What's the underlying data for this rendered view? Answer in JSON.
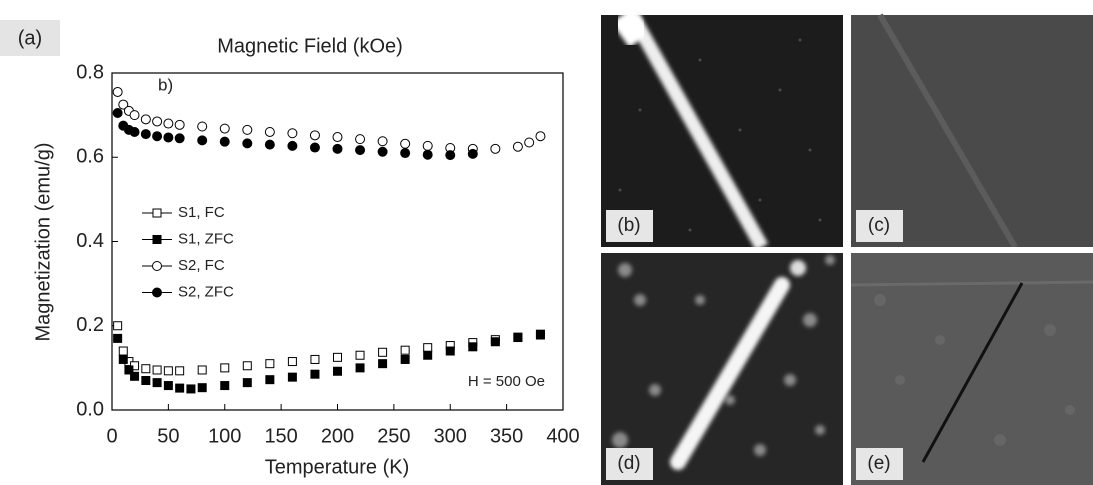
{
  "chart_data": {
    "type": "scatter",
    "panel_label": "(a)",
    "title": "Magnetic Field (kOe)",
    "annotation": "b)",
    "note": "H = 500 Oe",
    "x_label": "Temperature (K)",
    "y_label": "Magnetization (emu/g)",
    "xlim": [
      0,
      400
    ],
    "ylim": [
      0,
      0.8
    ],
    "xticks": [
      0,
      50,
      100,
      150,
      200,
      250,
      300,
      350,
      400
    ],
    "yticks": [
      {
        "value": 0,
        "label": "0.0"
      },
      0.2,
      0.4,
      0.6,
      {
        "value": 0.8,
        "label": "0.8"
      }
    ],
    "series": [
      {
        "name": "S1, FC",
        "marker": "square",
        "color": "#000",
        "fill": "#fff",
        "x": [
          5,
          10,
          15,
          20,
          30,
          40,
          50,
          60,
          80,
          100,
          120,
          140,
          160,
          180,
          200,
          220,
          240,
          260,
          280,
          300,
          320,
          340,
          360,
          380
        ],
        "values": [
          0.2,
          0.14,
          0.115,
          0.105,
          0.098,
          0.095,
          0.093,
          0.093,
          0.095,
          0.1,
          0.105,
          0.11,
          0.115,
          0.12,
          0.125,
          0.13,
          0.137,
          0.142,
          0.148,
          0.153,
          0.16,
          0.167,
          0.173,
          0.18
        ]
      },
      {
        "name": "S1, ZFC",
        "marker": "square",
        "color": "#000",
        "fill": "#000",
        "x": [
          5,
          10,
          15,
          20,
          30,
          40,
          50,
          60,
          70,
          80,
          100,
          120,
          140,
          160,
          180,
          200,
          220,
          240,
          260,
          280,
          300,
          320,
          340,
          360,
          380
        ],
        "values": [
          0.17,
          0.12,
          0.095,
          0.08,
          0.07,
          0.065,
          0.058,
          0.052,
          0.05,
          0.053,
          0.058,
          0.065,
          0.072,
          0.078,
          0.085,
          0.092,
          0.1,
          0.11,
          0.12,
          0.13,
          0.14,
          0.15,
          0.162,
          0.172,
          0.178
        ]
      },
      {
        "name": "S2, FC",
        "marker": "circle",
        "color": "#000",
        "fill": "#fff",
        "x": [
          5,
          10,
          15,
          20,
          30,
          40,
          50,
          60,
          80,
          100,
          120,
          140,
          160,
          180,
          200,
          220,
          240,
          260,
          280,
          300,
          320,
          340,
          360,
          370,
          380
        ],
        "values": [
          0.755,
          0.725,
          0.71,
          0.7,
          0.69,
          0.685,
          0.68,
          0.677,
          0.673,
          0.668,
          0.665,
          0.66,
          0.657,
          0.652,
          0.648,
          0.643,
          0.638,
          0.632,
          0.627,
          0.622,
          0.62,
          0.62,
          0.625,
          0.635,
          0.65
        ]
      },
      {
        "name": "S2, ZFC",
        "marker": "circle",
        "color": "#000",
        "fill": "#000",
        "x": [
          5,
          10,
          15,
          20,
          30,
          40,
          50,
          60,
          80,
          100,
          120,
          140,
          160,
          180,
          200,
          220,
          240,
          260,
          280,
          300,
          320
        ],
        "values": [
          0.705,
          0.675,
          0.665,
          0.66,
          0.655,
          0.65,
          0.647,
          0.645,
          0.64,
          0.637,
          0.633,
          0.63,
          0.627,
          0.623,
          0.62,
          0.617,
          0.613,
          0.61,
          0.606,
          0.605,
          0.608
        ]
      }
    ]
  },
  "panels": [
    {
      "label": "(b)"
    },
    {
      "label": "(c)"
    },
    {
      "label": "(d)"
    },
    {
      "label": "(e)"
    }
  ]
}
